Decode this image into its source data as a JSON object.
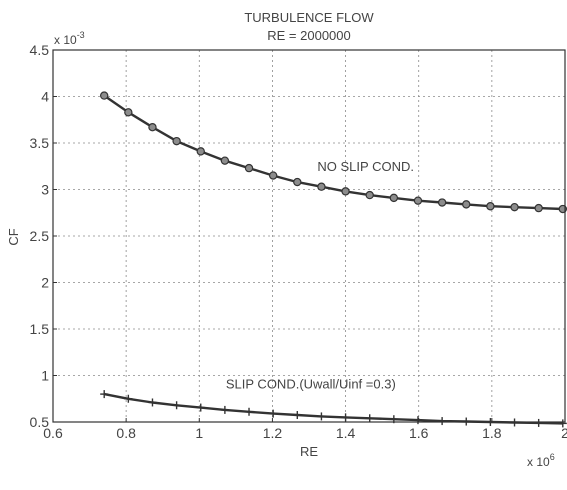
{
  "chart_data": {
    "type": "line",
    "title": "TURBULENCE FLOW",
    "subtitle": "RE = 2000000",
    "xlabel": "RE",
    "ylabel": "CF",
    "x_exponent_label": "x 10",
    "x_exponent_power": "6",
    "y_exponent_label": "x 10",
    "y_exponent_power": "-3",
    "xlim": [
      0.6,
      2.0
    ],
    "ylim": [
      0.5,
      4.5
    ],
    "x_ticks": [
      0.6,
      0.8,
      1.0,
      1.2,
      1.4,
      1.6,
      1.8,
      2.0
    ],
    "x_tick_labels": [
      "0.6",
      "0.8",
      "1",
      "1.2",
      "1.4",
      "1.6",
      "1.8",
      "2"
    ],
    "y_ticks": [
      0.5,
      1.0,
      1.5,
      2.0,
      2.5,
      3.0,
      3.5,
      4.0,
      4.5
    ],
    "y_tick_labels": [
      "0.5",
      "1",
      "1.5",
      "2",
      "2.5",
      "3",
      "3.5",
      "4",
      "4.5"
    ],
    "grid": true,
    "legend": "none",
    "x": [
      0.74,
      0.806,
      0.872,
      0.938,
      1.004,
      1.07,
      1.136,
      1.202,
      1.268,
      1.334,
      1.4,
      1.466,
      1.532,
      1.598,
      1.664,
      1.73,
      1.796,
      1.862,
      1.928,
      1.994
    ],
    "series": [
      {
        "marker": "circle",
        "color": "#333333",
        "values": [
          4.01,
          3.83,
          3.67,
          3.52,
          3.41,
          3.31,
          3.23,
          3.15,
          3.08,
          3.03,
          2.98,
          2.94,
          2.91,
          2.88,
          2.86,
          2.84,
          2.82,
          2.81,
          2.8,
          2.79
        ]
      },
      {
        "marker": "plus",
        "color": "#333333",
        "values": [
          0.8,
          0.75,
          0.71,
          0.68,
          0.655,
          0.63,
          0.61,
          0.59,
          0.575,
          0.56,
          0.55,
          0.54,
          0.53,
          0.52,
          0.51,
          0.505,
          0.5,
          0.495,
          0.49,
          0.485
        ]
      }
    ],
    "annotations": [
      {
        "text": "NO SLIP COND.",
        "x": 1.455,
        "y": 3.2
      },
      {
        "text": "SLIP COND.(Uwall/Uinf =0.3)",
        "x": 1.305,
        "y": 0.86
      }
    ]
  }
}
